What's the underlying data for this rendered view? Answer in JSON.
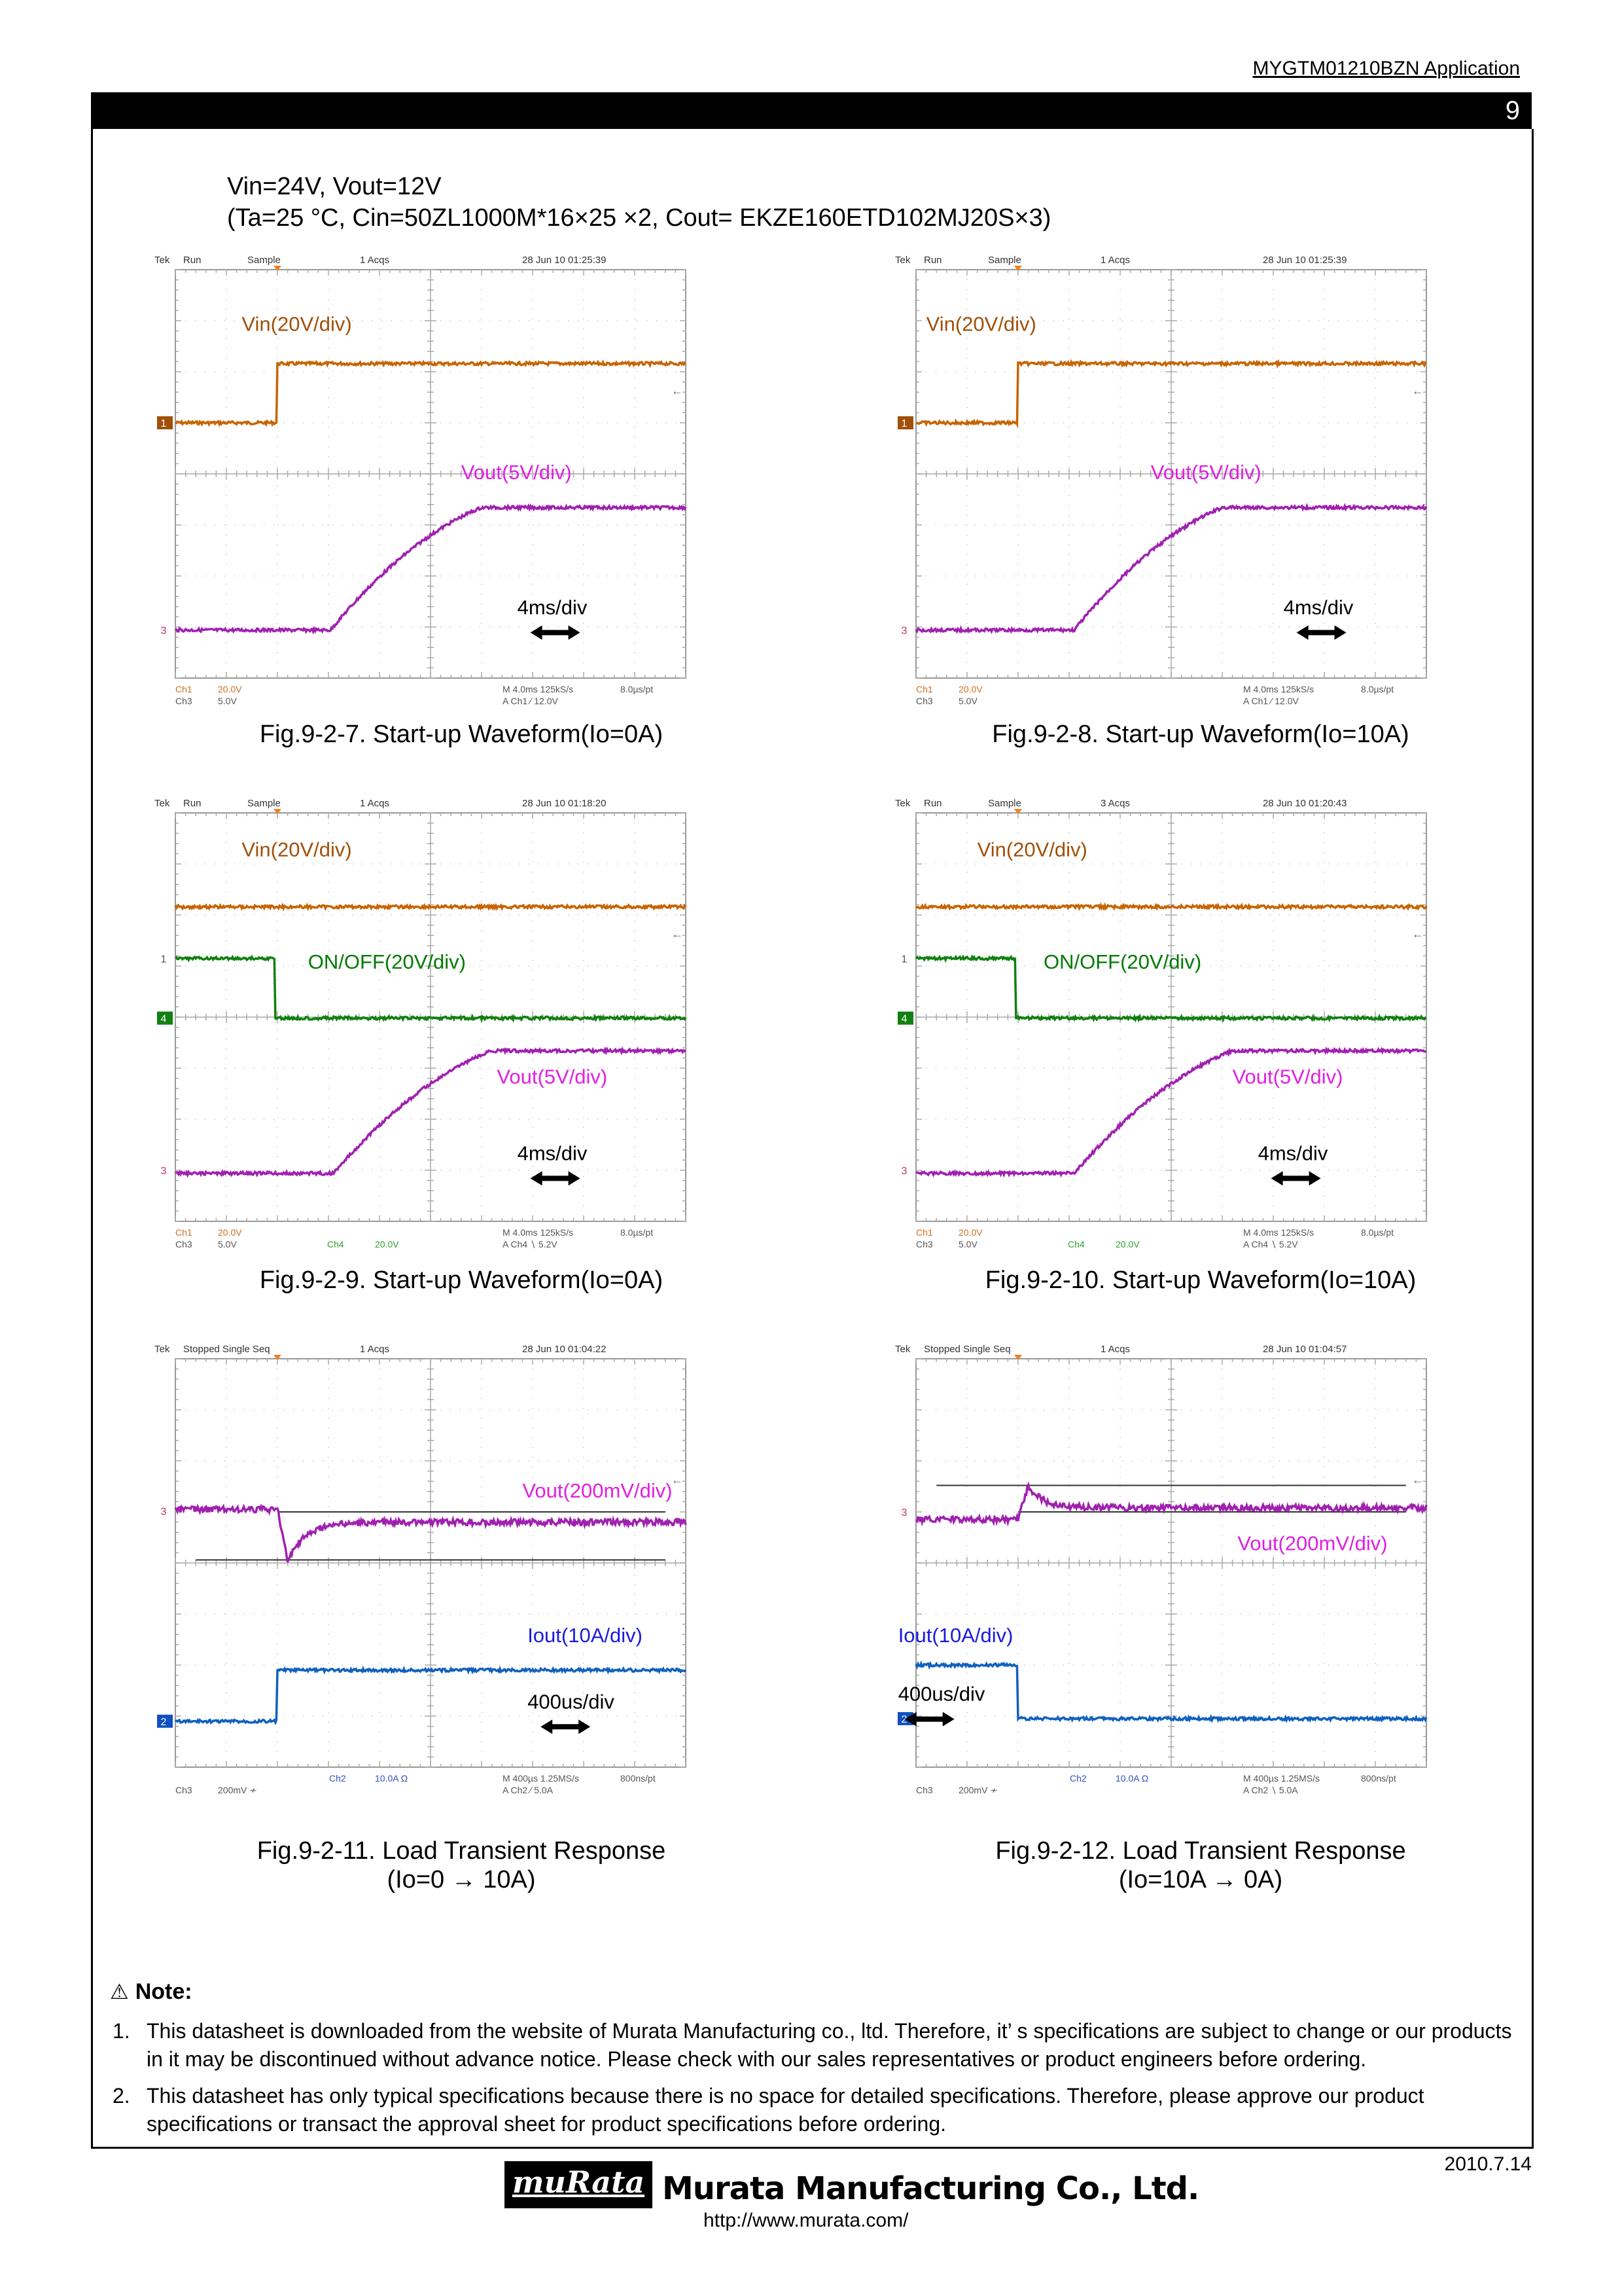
{
  "header": {
    "doc_id": "MYGTM01210BZN  Application",
    "page_number": "9"
  },
  "conditions": {
    "line1": "Vin=24V, Vout=12V",
    "line2": "(Ta=25 °C, Cin=50ZL1000M*16×25 ×2, Cout= EKZE160ETD102MJ20S×3)"
  },
  "figures": [
    {
      "caption": [
        "Fig.9-2-7. Start-up Waveform(Io=0A)"
      ],
      "scope": {
        "brand": "Tek",
        "state": "Run",
        "mode": "Sample",
        "acqs": "1 Acqs",
        "datetime": "28 Jun 10 01:25:39",
        "r1a": "Ch1",
        "r1b": "20.0V",
        "r2a": "Ch3",
        "r2b": "5.0V",
        "r1c": "",
        "r1d": "",
        "r2c": "",
        "r2d": "",
        "time": "M 4.0ms 125kS/s",
        "pt": "8.0µs/pt",
        "trig": "A  Ch1  ∕  12.0V",
        "labels": [
          {
            "text": "Vin(20V/div)",
            "color": "#a0500a"
          },
          {
            "text": "Vout(5V/div)",
            "color": "#e020e0"
          }
        ],
        "timebase": "4ms/div",
        "markers": [
          "1",
          "3"
        ]
      }
    },
    {
      "caption": [
        "Fig.9-2-8. Start-up Waveform(Io=10A)"
      ],
      "scope": {
        "brand": "Tek",
        "state": "Run",
        "mode": "Sample",
        "acqs": "1 Acqs",
        "datetime": "28 Jun 10 01:25:39",
        "r1a": "Ch1",
        "r1b": "20.0V",
        "r2a": "Ch3",
        "r2b": "5.0V",
        "r1c": "",
        "r1d": "",
        "r2c": "",
        "r2d": "",
        "time": "M 4.0ms 125kS/s",
        "pt": "8.0µs/pt",
        "trig": "A  Ch1  ∕  12.0V",
        "labels": [
          {
            "text": "Vin(20V/div)",
            "color": "#a0500a"
          },
          {
            "text": "Vout(5V/div)",
            "color": "#e020e0"
          }
        ],
        "timebase": "4ms/div",
        "markers": [
          "1",
          "3"
        ]
      }
    },
    {
      "caption": [
        "Fig.9-2-9. Start-up Waveform(Io=0A)"
      ],
      "scope": {
        "brand": "Tek",
        "state": "Run",
        "mode": "Sample",
        "acqs": "1 Acqs",
        "datetime": "28 Jun 10 01:18:20",
        "r1a": "Ch1",
        "r1b": "20.0V",
        "r2a": "Ch3",
        "r2b": "5.0V",
        "r1c": "",
        "r1d": "",
        "r2c": "Ch4",
        "r2d": "20.0V",
        "time": "M 4.0ms 125kS/s",
        "pt": "8.0µs/pt",
        "trig": "A  Ch4  ∖  5.2V",
        "labels": [
          {
            "text": "Vin(20V/div)",
            "color": "#a0500a"
          },
          {
            "text": "ON/OFF(20V/div)",
            "color": "#007a00"
          },
          {
            "text": "Vout(5V/div)",
            "color": "#e020e0"
          }
        ],
        "timebase": "4ms/div",
        "markers": [
          "1",
          "4",
          "3"
        ]
      }
    },
    {
      "caption": [
        "Fig.9-2-10. Start-up Waveform(Io=10A)"
      ],
      "scope": {
        "brand": "Tek",
        "state": "Run",
        "mode": "Sample",
        "acqs": "3 Acqs",
        "datetime": "28 Jun 10 01:20:43",
        "r1a": "Ch1",
        "r1b": "20.0V",
        "r2a": "Ch3",
        "r2b": "5.0V",
        "r1c": "",
        "r1d": "",
        "r2c": "Ch4",
        "r2d": "20.0V",
        "time": "M 4.0ms 125kS/s",
        "pt": "8.0µs/pt",
        "trig": "A  Ch4  ∖  5.2V",
        "labels": [
          {
            "text": "Vin(20V/div)",
            "color": "#a0500a"
          },
          {
            "text": "ON/OFF(20V/div)",
            "color": "#007a00"
          },
          {
            "text": "Vout(5V/div)",
            "color": "#e020e0"
          }
        ],
        "timebase": "4ms/div",
        "markers": [
          "1",
          "4",
          "3"
        ]
      }
    },
    {
      "caption": [
        "Fig.9-2-11. Load Transient Response",
        "(Io=0 →  10A)"
      ],
      "scope": {
        "brand": "Tek",
        "state": "Stopped  Single Seq",
        "mode": "",
        "acqs": "1 Acqs",
        "datetime": "28 Jun 10 01:04:22",
        "r1a": "",
        "r1b": "",
        "r2a": "Ch3",
        "r2b": "200mV  ≁",
        "r1c": "Ch2",
        "r1d": "10.0A    Ω",
        "r2c": "",
        "r2d": "",
        "time": "M 400µs 1.25MS/s",
        "pt": "800ns/pt",
        "trig": "A  Ch2  ∕  5.0A",
        "labels": [
          {
            "text": "Vout(200mV/div)",
            "color": "#e020e0"
          },
          {
            "text": "Iout(10A/div)",
            "color": "#1a1ae0"
          }
        ],
        "timebase": "400us/div",
        "markers": [
          "3",
          "2"
        ]
      }
    },
    {
      "caption": [
        "Fig.9-2-12. Load Transient Response",
        "(Io=10A →  0A)"
      ],
      "scope": {
        "brand": "Tek",
        "state": "Stopped  Single Seq",
        "mode": "",
        "acqs": "1 Acqs",
        "datetime": "28 Jun 10 01:04:57",
        "r1a": "",
        "r1b": "",
        "r2a": "Ch3",
        "r2b": "200mV  ≁",
        "r1c": "Ch2",
        "r1d": "10.0A    Ω",
        "r2c": "",
        "r2d": "",
        "time": "M 400µs 1.25MS/s",
        "pt": "800ns/pt",
        "trig": "A  Ch2  ∖  5.0A",
        "labels": [
          {
            "text": "Vout(200mV/div)",
            "color": "#e020e0"
          },
          {
            "text": "Iout(10A/div)",
            "color": "#1a1ae0"
          }
        ],
        "timebase": "400us/div",
        "markers": [
          "3",
          "2"
        ]
      }
    }
  ],
  "note": {
    "icon": "warning-icon",
    "title": "Note:",
    "items": [
      {
        "num": "1.",
        "text": "This datasheet is downloaded from the website of Murata Manufacturing co., ltd. Therefore, it’ s specifications are subject to change or our products in it may be discontinued without advance notice. Please check with our sales representatives or product engineers before ordering."
      },
      {
        "num": "2.",
        "text": "This datasheet has only typical specifications because there is no space for detailed specifications. Therefore, please approve our product specifications or transact the approval sheet for product specifications before ordering."
      }
    ]
  },
  "footer": {
    "date": "2010.7.14",
    "logo_text": "muRata",
    "company": "Murata Manufacturing Co., Ltd.",
    "url": "http://www.murata.com/"
  }
}
